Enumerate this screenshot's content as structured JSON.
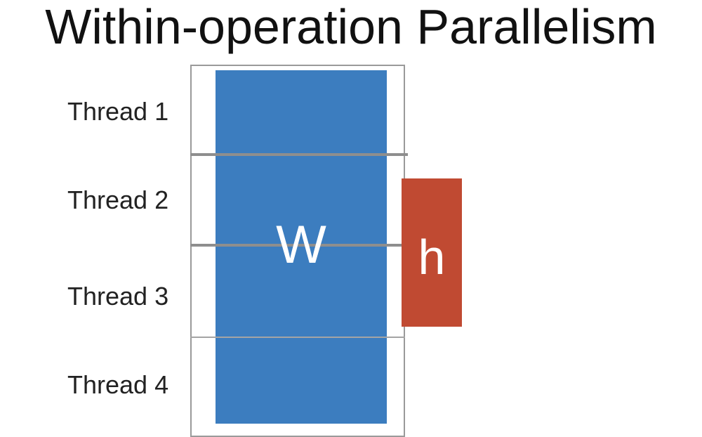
{
  "slide": {
    "title": "Within-operation Parallelism"
  },
  "threads": [
    {
      "label": "Thread 1"
    },
    {
      "label": "Thread 2"
    },
    {
      "label": "Thread 3"
    },
    {
      "label": "Thread 4"
    }
  ],
  "matrix": {
    "label": "W",
    "color": "#3c7dbf"
  },
  "vector": {
    "label": "h",
    "color": "#c04a32"
  }
}
